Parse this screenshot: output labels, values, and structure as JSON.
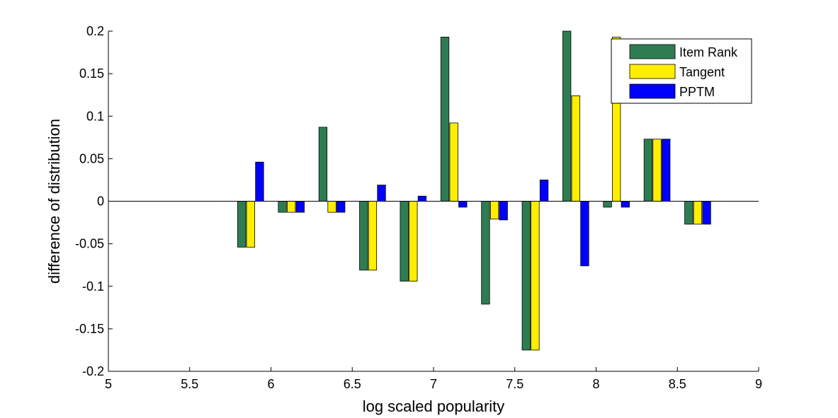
{
  "chart_data": {
    "type": "bar",
    "xlabel": "log scaled popularity",
    "ylabel": "difference of distribution",
    "xlim": [
      5,
      9
    ],
    "ylim": [
      -0.2,
      0.2
    ],
    "xticks": [
      "5",
      "5.5",
      "6",
      "6.5",
      "7",
      "7.5",
      "8",
      "8.5",
      "9"
    ],
    "yticks": [
      "0.2",
      "0.15",
      "0.1",
      "0.05",
      "0",
      "-0.05",
      "-0.1",
      "-0.15",
      "-0.2"
    ],
    "grid": false,
    "legend_position": "top-right",
    "x": [
      5.875,
      6.125,
      6.375,
      6.625,
      6.875,
      7.125,
      7.375,
      7.625,
      7.875,
      8.125,
      8.375,
      8.625
    ],
    "series": [
      {
        "name": "Item Rank",
        "color": "#2e7d52",
        "values": [
          -0.054,
          -0.013,
          0.087,
          -0.081,
          -0.094,
          0.193,
          -0.121,
          -0.175,
          0.2,
          -0.007,
          0.073,
          -0.027
        ]
      },
      {
        "name": "Tangent",
        "color": "#ffee00",
        "values": [
          -0.054,
          -0.013,
          -0.013,
          -0.081,
          -0.094,
          0.092,
          -0.021,
          -0.175,
          0.124,
          0.193,
          0.073,
          -0.027
        ]
      },
      {
        "name": "PPTM",
        "color": "#0000ff",
        "values": [
          0.046,
          -0.013,
          -0.013,
          0.019,
          0.006,
          -0.007,
          -0.022,
          0.025,
          -0.076,
          -0.007,
          0.073,
          -0.027
        ]
      }
    ]
  }
}
